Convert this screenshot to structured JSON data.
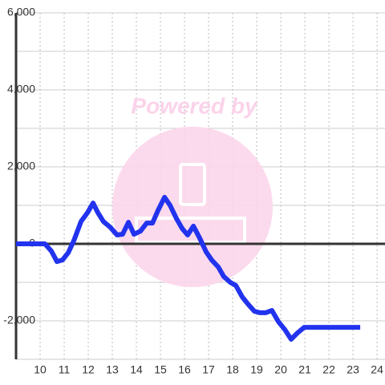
{
  "chart_data": {
    "type": "line",
    "watermark": "Powered by",
    "x": [
      9,
      10.2,
      10.47,
      10.7,
      10.93,
      11.17,
      11.4,
      11.7,
      11.97,
      12.2,
      12.4,
      12.63,
      12.9,
      13.2,
      13.43,
      13.67,
      13.9,
      14.17,
      14.43,
      14.67,
      14.9,
      15.17,
      15.4,
      15.67,
      15.9,
      16.13,
      16.37,
      16.63,
      16.9,
      17.13,
      17.4,
      17.63,
      17.9,
      18.13,
      18.4,
      18.63,
      18.9,
      19.13,
      19.37,
      19.63,
      19.9,
      20.17,
      20.43,
      20.7,
      20.97,
      23.3
    ],
    "series": [
      {
        "color": "#2233ee",
        "values": [
          0,
          0,
          -190,
          -460,
          -420,
          -230,
          80,
          580,
          810,
          1060,
          810,
          580,
          440,
          230,
          250,
          560,
          250,
          330,
          540,
          540,
          870,
          1210,
          1000,
          650,
          400,
          230,
          460,
          150,
          -210,
          -420,
          -600,
          -850,
          -1000,
          -1080,
          -1380,
          -1560,
          -1750,
          -1790,
          -1790,
          -1730,
          -2020,
          -2230,
          -2480,
          -2310,
          -2170,
          -2170
        ]
      }
    ],
    "xlim": [
      9,
      24.33
    ],
    "xticks": [
      10,
      11,
      12,
      13,
      14,
      15,
      16,
      17,
      18,
      19,
      20,
      21,
      22,
      23,
      24
    ],
    "ylim": [
      -3000,
      6000
    ],
    "yticks": [
      {
        "value": -2000,
        "label": "-2,000"
      },
      0,
      {
        "value": 2000,
        "label": "2,000"
      },
      {
        "value": 4000,
        "label": "4,000"
      },
      {
        "value": 6000,
        "label": "6,000"
      }
    ],
    "y_minor_grid": [
      -3000,
      -1000,
      1000,
      3000,
      5000
    ],
    "grid": true
  }
}
